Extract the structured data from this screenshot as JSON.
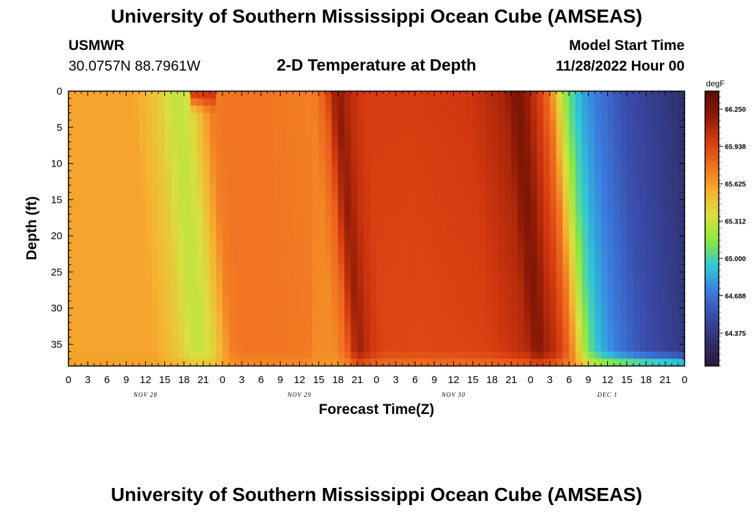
{
  "header": {
    "title": "University of Southern Mississippi Ocean Cube (AMSEAS)",
    "station_id": "USMWR",
    "station_coords": "30.0757N  88.7961W",
    "subtitle": "2-D Temperature at Depth",
    "model_start_label": "Model Start Time",
    "model_start_value": "11/28/2022 Hour 00"
  },
  "footer": {
    "title": "University of Southern Mississippi Ocean Cube (AMSEAS)"
  },
  "chart_data": {
    "type": "heatmap",
    "title": "2-D Temperature at Depth",
    "xlabel": "Forecast Time(Z)",
    "ylabel": "Depth (ft)",
    "x_tick_labels": [
      "0",
      "3",
      "6",
      "9",
      "12",
      "15",
      "18",
      "21",
      "0",
      "3",
      "6",
      "9",
      "12",
      "15",
      "18",
      "21",
      "0",
      "3",
      "6",
      "9",
      "12",
      "15",
      "18",
      "21",
      "0",
      "3",
      "6",
      "9",
      "12",
      "15",
      "18",
      "21",
      "0"
    ],
    "day_labels": [
      "NOV 28",
      "NOV 29",
      "NOV 30",
      "DEC 1"
    ],
    "x_range_hours": [
      0,
      96
    ],
    "y_range_ft": [
      0,
      38
    ],
    "y_ticks": [
      0,
      5,
      10,
      15,
      20,
      25,
      30,
      35
    ],
    "y_reversed": true,
    "colorbar": {
      "unit": "degF",
      "range": [
        64.1,
        66.4
      ],
      "tick_values": [
        64.375,
        64.688,
        65.0,
        65.312,
        65.625,
        65.938,
        66.25
      ],
      "tick_labels": [
        "64.375",
        "64.688",
        "65.000",
        "65.312",
        "65.625",
        "65.938",
        "66.250"
      ],
      "colors": [
        "#2a1a3e",
        "#30306e",
        "#3a4aa8",
        "#3a7ee0",
        "#2ec8d6",
        "#8ae840",
        "#d8e040",
        "#f6b030",
        "#f07020",
        "#d63a10",
        "#8e1a06",
        "#5a0e04"
      ]
    },
    "temperature_profile_by_hour": {
      "hours": [
        0,
        10,
        14,
        16,
        17.5,
        19,
        22,
        24,
        30,
        38,
        40,
        41,
        42,
        44,
        46,
        52,
        62,
        68,
        69,
        70,
        71,
        72,
        73.5,
        75,
        76,
        77,
        78,
        80,
        82,
        86,
        90,
        94,
        96
      ],
      "values_degF": [
        65.6,
        65.6,
        65.45,
        65.31,
        65.3,
        65.38,
        65.72,
        65.76,
        65.76,
        65.72,
        65.85,
        66.08,
        66.2,
        66.05,
        65.98,
        65.97,
        66.0,
        66.12,
        66.22,
        66.28,
        66.2,
        66.1,
        65.95,
        65.75,
        65.5,
        65.25,
        65.05,
        64.85,
        64.72,
        64.55,
        64.45,
        64.35,
        64.3
      ]
    },
    "surface_warm_patch": {
      "hours": [
        19.5,
        22.5
      ],
      "depth_ft": [
        0,
        3
      ],
      "value_degF": 66.05
    },
    "bottom_layer_ft": [
      36,
      38
    ]
  }
}
